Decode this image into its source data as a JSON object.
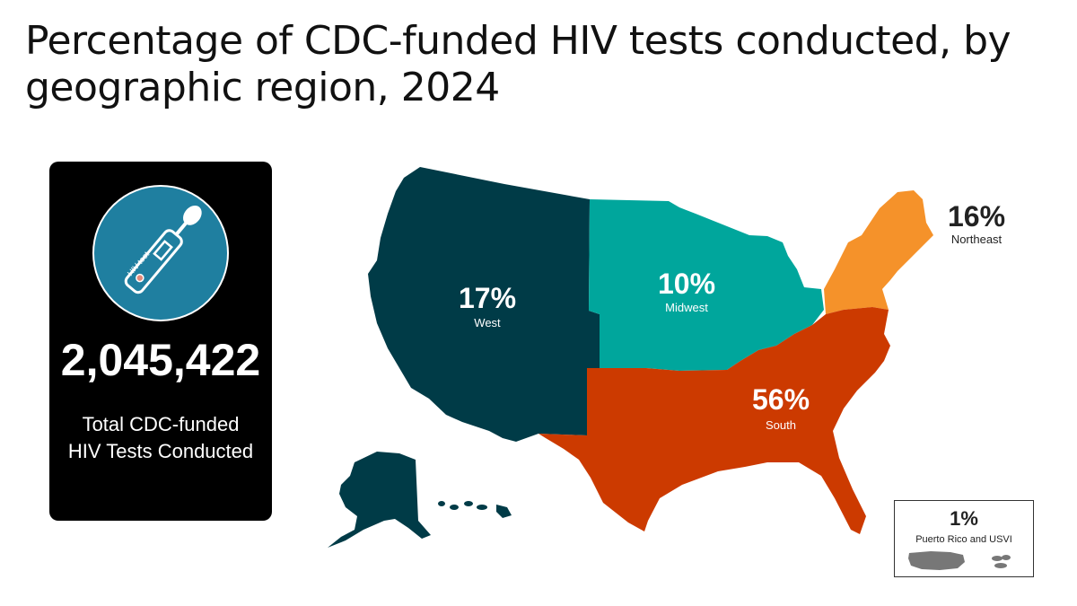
{
  "title": "Percentage of CDC-funded HIV tests conducted, by geographic region, 2024",
  "summary": {
    "total": "2,045,422",
    "label": "Total CDC-funded HIV Tests Conducted",
    "icon": "hiv-test-swab-icon",
    "icon_text": "HIV test"
  },
  "regions": [
    {
      "name": "West",
      "percent": "17%",
      "color": "#003b47"
    },
    {
      "name": "Midwest",
      "percent": "10%",
      "color": "#00a69c"
    },
    {
      "name": "South",
      "percent": "56%",
      "color": "#cc3a00"
    },
    {
      "name": "Northeast",
      "percent": "16%",
      "color": "#f5922a"
    },
    {
      "name": "Puerto Rico and USVI",
      "percent": "1%",
      "color": "#777777"
    }
  ]
}
